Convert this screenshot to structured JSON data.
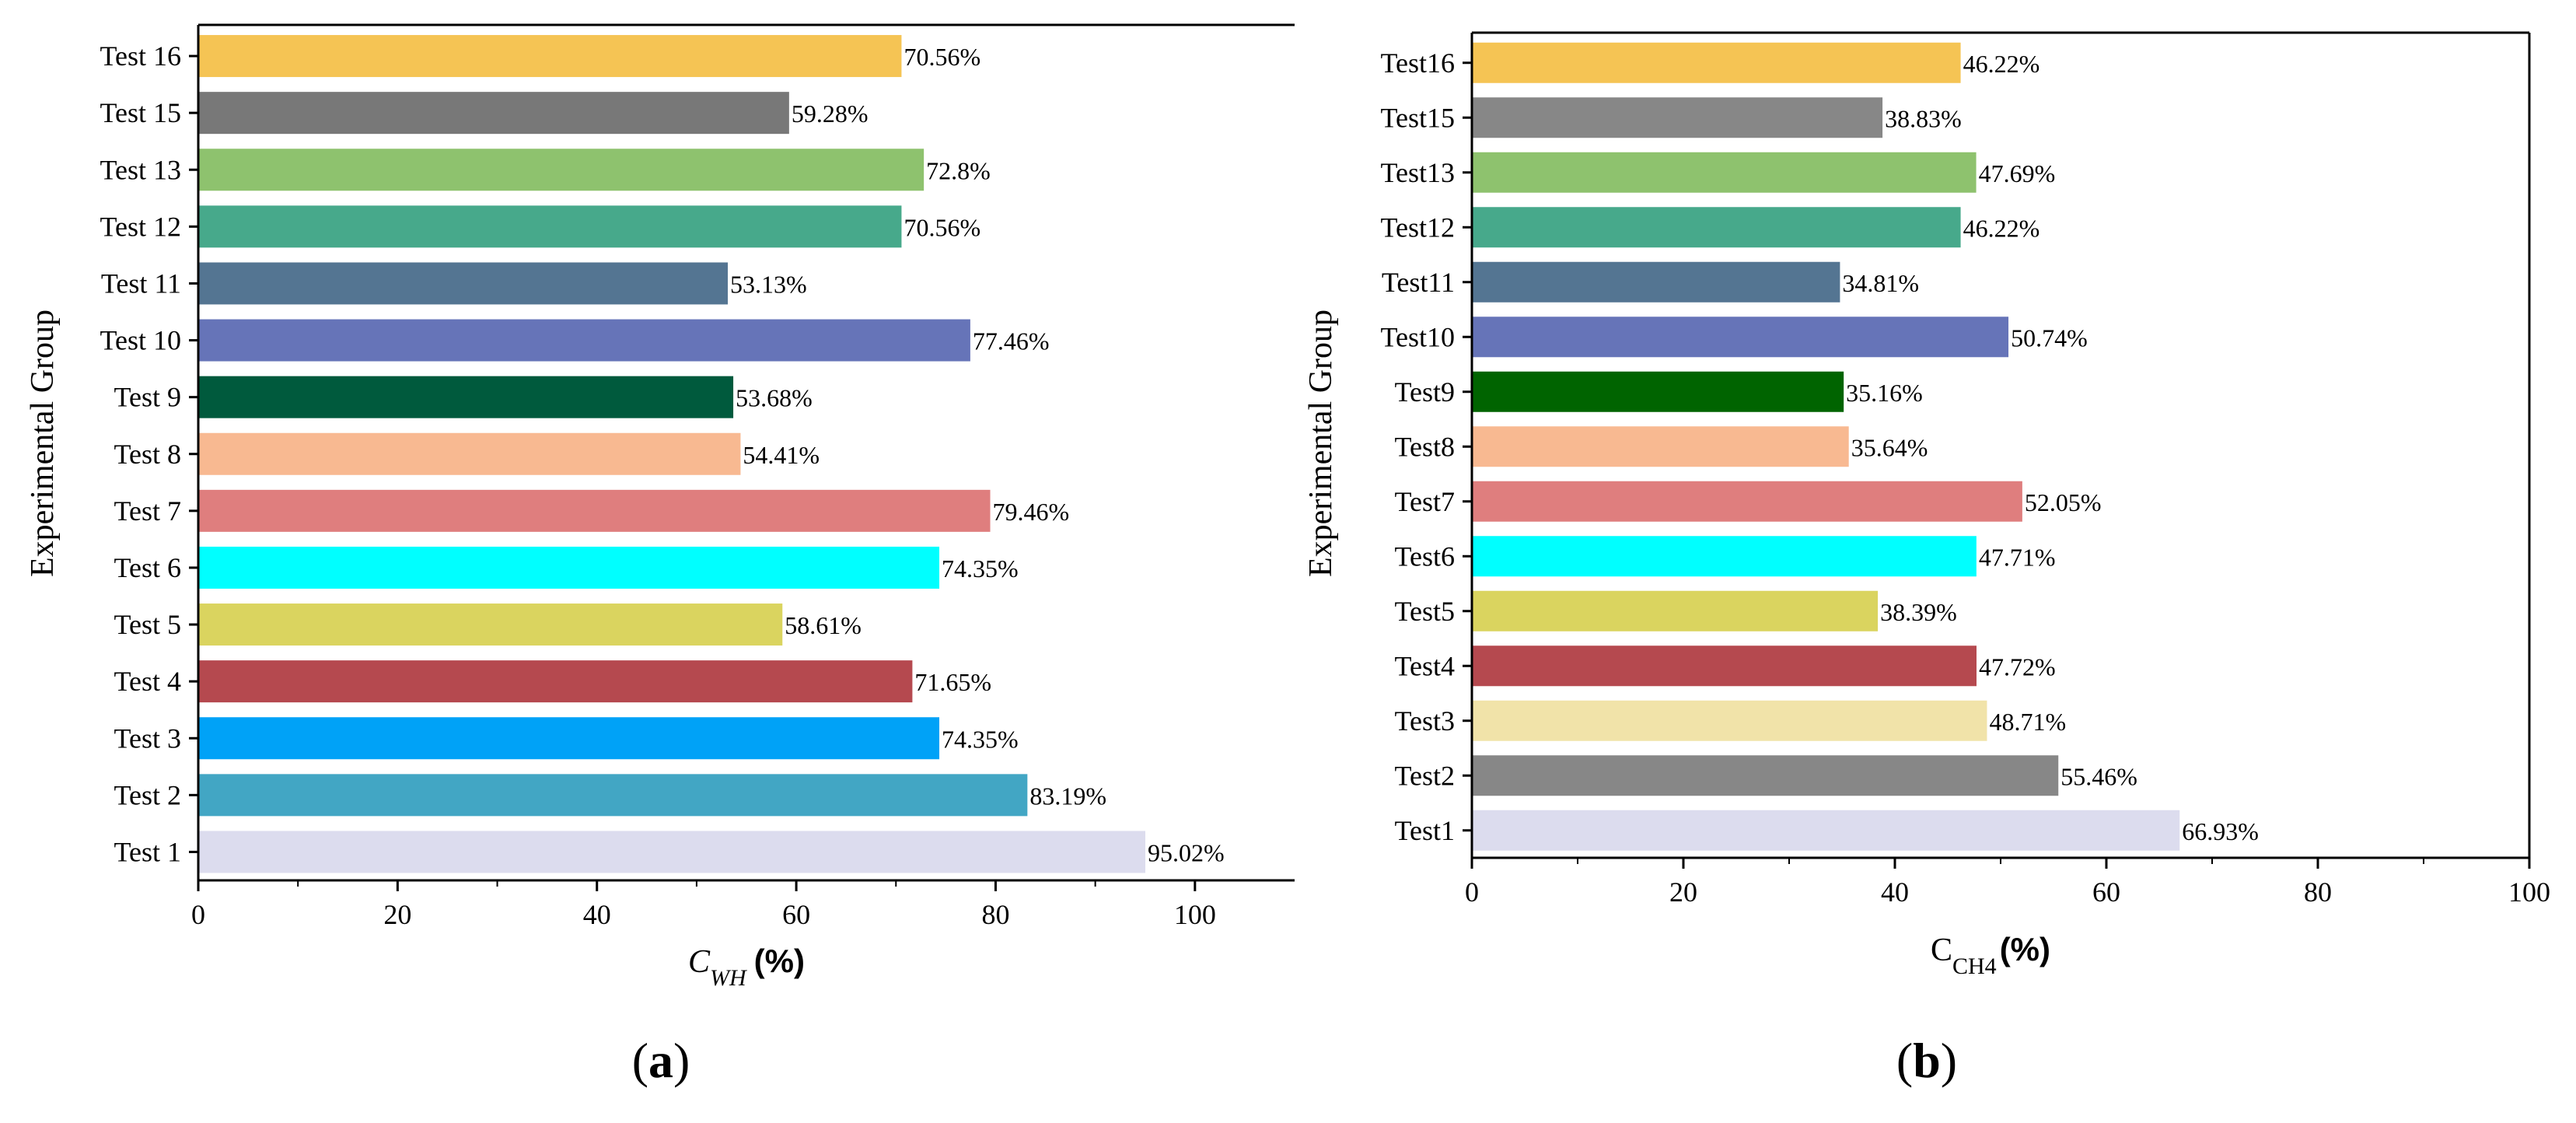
{
  "chart_data": [
    {
      "type": "bar",
      "orientation": "horizontal",
      "panel_label": "a",
      "categories": [
        "Test 1",
        "Test 2",
        "Test 3",
        "Test 4",
        "Test 5",
        "Test 6",
        "Test 7",
        "Test 8",
        "Test 9",
        "Test 10",
        "Test 11",
        "Test 12",
        "Test 13",
        "Test 15",
        "Test 16"
      ],
      "values": [
        95.02,
        83.19,
        74.35,
        71.65,
        58.61,
        74.35,
        79.46,
        54.41,
        53.68,
        77.46,
        53.13,
        70.56,
        72.8,
        59.28,
        70.56
      ],
      "value_labels": [
        "95.02%",
        "83.19%",
        "74.35%",
        "71.65%",
        "58.61%",
        "74.35%",
        "79.46%",
        "54.41%",
        "53.68%",
        "77.46%",
        "53.13%",
        "70.56%",
        "72.8%",
        "59.28%",
        "70.56%"
      ],
      "colors": [
        "#dcdcee",
        "#42a6c4",
        "#00a2f7",
        "#b5494f",
        "#dad45f",
        "#00ffff",
        "#df7e7e",
        "#f8b991",
        "#005a3d",
        "#6674b8",
        "#547592",
        "#47a98b",
        "#8ec26e",
        "#787878",
        "#f5c454"
      ],
      "xlabel_main": "C",
      "xlabel_sub": "WH",
      "xlabel_unit": "(%)",
      "ylabel": "Experimental Group",
      "xlim": [
        0,
        110
      ],
      "xticks": [
        0,
        20,
        40,
        60,
        80,
        100
      ],
      "xtick_labels": [
        "0",
        "20",
        "40",
        "60",
        "80",
        "100"
      ],
      "grid": false,
      "frame": "left-top"
    },
    {
      "type": "bar",
      "orientation": "horizontal",
      "panel_label": "b",
      "categories": [
        "Test1",
        "Test2",
        "Test3",
        "Test4",
        "Test5",
        "Test6",
        "Test7",
        "Test8",
        "Test9",
        "Test10",
        "Test11",
        "Test12",
        "Test13",
        "Test15",
        "Test16"
      ],
      "values": [
        66.93,
        55.46,
        48.71,
        47.72,
        38.39,
        47.71,
        52.05,
        35.64,
        35.16,
        50.74,
        34.81,
        46.22,
        47.69,
        38.83,
        46.22
      ],
      "value_labels": [
        "66.93%",
        "55.46%",
        "48.71%",
        "47.72%",
        "38.39%",
        "47.71%",
        "52.05%",
        "35.64%",
        "35.16%",
        "50.74%",
        "34.81%",
        "46.22%",
        "47.69%",
        "38.83%",
        "46.22%"
      ],
      "colors": [
        "#dcdcee",
        "#878787",
        "#f1e3a9",
        "#b5494f",
        "#dad45f",
        "#00ffff",
        "#df7e7e",
        "#f8b991",
        "#006400",
        "#6674b8",
        "#547592",
        "#47a98b",
        "#8ec26e",
        "#878787",
        "#f5c454"
      ],
      "xlabel_main": "C",
      "xlabel_sub": "CH4",
      "xlabel_unit": "(%)",
      "ylabel": "Experimental Group",
      "xlim": [
        0,
        100
      ],
      "xticks": [
        0,
        20,
        40,
        60,
        80,
        100
      ],
      "xtick_labels": [
        "0",
        "20",
        "40",
        "60",
        "80",
        "100"
      ],
      "grid": false,
      "frame": "box"
    }
  ]
}
